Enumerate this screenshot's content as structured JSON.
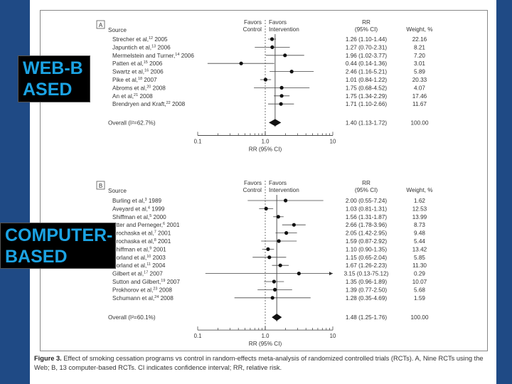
{
  "overlays": {
    "web": "WEB-B\nASED",
    "computer": "COMPUTER-\nBASED"
  },
  "caption": {
    "label": "Figure 3.",
    "text": " Effect of smoking cessation programs vs control in random-effects meta-analysis of randomized controlled trials (RCTs). A, Nine RCTs using the Web; B, 13 computer-based RCTs. CI indicates confidence interval; RR, relative risk."
  },
  "chart_data": [
    {
      "type": "forest",
      "panel": "A",
      "headers": {
        "source": "Source",
        "favors_control": [
          "Favors",
          "Control"
        ],
        "favors_intervention": [
          "Favors",
          "Intervention"
        ],
        "rr": [
          "RR",
          "(95% CI)"
        ],
        "weight": "Weight, %"
      },
      "xlabel": "RR (95% CI)",
      "xscale": "log",
      "xlim": [
        0.1,
        10
      ],
      "xticks": [
        "0.1",
        "1.0",
        "10"
      ],
      "studies": [
        {
          "source": "Strecher et al,",
          "ref": "12",
          "year": "2005",
          "rr": 1.26,
          "lo": 1.1,
          "hi": 1.44,
          "text": "1.26 (1.10-1.44)",
          "weight": "22.16"
        },
        {
          "source": "Japuntich et al,",
          "ref": "13",
          "year": "2006",
          "rr": 1.27,
          "lo": 0.7,
          "hi": 2.31,
          "text": "1.27 (0.70-2.31)",
          "weight": "8.21"
        },
        {
          "source": "Mermelstein and Turner,",
          "ref": "14",
          "year": "2006",
          "rr": 1.96,
          "lo": 1.02,
          "hi": 3.77,
          "text": "1.96 (1.02-3.77)",
          "weight": "7.20"
        },
        {
          "source": "Patten et al,",
          "ref": "15",
          "year": "2006",
          "rr": 0.44,
          "lo": 0.14,
          "hi": 1.36,
          "text": "0.44 (0.14-1.36)",
          "weight": "3.01"
        },
        {
          "source": "Swartz et al,",
          "ref": "16",
          "year": "2006",
          "rr": 2.46,
          "lo": 1.16,
          "hi": 5.21,
          "text": "2.46 (1.16-5.21)",
          "weight": "5.89"
        },
        {
          "source": "Pike et al,",
          "ref": "18",
          "year": "2007",
          "rr": 1.01,
          "lo": 0.84,
          "hi": 1.22,
          "text": "1.01 (0.84-1.22)",
          "weight": "20.33"
        },
        {
          "source": "Abroms et al,",
          "ref": "20",
          "year": "2008",
          "rr": 1.75,
          "lo": 0.68,
          "hi": 4.52,
          "text": "1.75 (0.68-4.52)",
          "weight": "4.07"
        },
        {
          "source": "An et al,",
          "ref": "21",
          "year": "2008",
          "rr": 1.75,
          "lo": 1.34,
          "hi": 2.29,
          "text": "1.75 (1.34-2.29)",
          "weight": "17.46"
        },
        {
          "source": "Brendryen and Kraft,",
          "ref": "22",
          "year": "2008",
          "rr": 1.71,
          "lo": 1.1,
          "hi": 2.66,
          "text": "1.71 (1.10-2.66)",
          "weight": "11.67"
        }
      ],
      "overall": {
        "label": "Overall",
        "i2": "(I²=62.7%)",
        "rr": 1.4,
        "lo": 1.13,
        "hi": 1.72,
        "text": "1.40 (1.13-1.72)",
        "weight": "100.00"
      }
    },
    {
      "type": "forest",
      "panel": "B",
      "headers": {
        "source": "Source",
        "favors_control": [
          "Favors",
          "Control"
        ],
        "favors_intervention": [
          "Favors",
          "Intervention"
        ],
        "rr": [
          "RR",
          "(95% CI)"
        ],
        "weight": "Weight, %"
      },
      "xlabel": "RR (95% CI)",
      "xscale": "log",
      "xlim": [
        0.1,
        10
      ],
      "xticks": [
        "0.1",
        "1.0",
        "10"
      ],
      "studies": [
        {
          "source": "Burling et al,",
          "ref": "3",
          "year": "1989",
          "rr": 2.0,
          "lo": 0.55,
          "hi": 7.24,
          "text": "2.00 (0.55-7.24)",
          "weight": "1.62"
        },
        {
          "source": "Aveyard et al,",
          "ref": "4",
          "year": "1999",
          "rr": 1.03,
          "lo": 0.81,
          "hi": 1.31,
          "text": "1.03 (0.81-1.31)",
          "weight": "12.53"
        },
        {
          "source": "Shiffman et al,",
          "ref": "5",
          "year": "2000",
          "rr": 1.56,
          "lo": 1.31,
          "hi": 1.87,
          "text": "1.56 (1.31-1.87)",
          "weight": "13.99"
        },
        {
          "source": "Etter and Perneger,",
          "ref": "6",
          "year": "2001",
          "rr": 2.66,
          "lo": 1.78,
          "hi": 3.96,
          "text": "2.66 (1.78-3.96)",
          "weight": "8.73"
        },
        {
          "source": "Prochaska et al,",
          "ref": "7",
          "year": "2001",
          "rr": 2.05,
          "lo": 1.42,
          "hi": 2.95,
          "text": "2.05 (1.42-2.95)",
          "weight": "9.48"
        },
        {
          "source": "Prochaska et al,",
          "ref": "8",
          "year": "2001",
          "rr": 1.59,
          "lo": 0.87,
          "hi": 2.92,
          "text": "1.59 (0.87-2.92)",
          "weight": "5.44"
        },
        {
          "source": "Shiffman et al,",
          "ref": "9",
          "year": "2001",
          "rr": 1.1,
          "lo": 0.9,
          "hi": 1.35,
          "text": "1.10 (0.90-1.35)",
          "weight": "13.42"
        },
        {
          "source": "Borland et al,",
          "ref": "10",
          "year": "2003",
          "rr": 1.15,
          "lo": 0.65,
          "hi": 2.04,
          "text": "1.15 (0.65-2.04)",
          "weight": "5.85"
        },
        {
          "source": "Borland et al,",
          "ref": "11",
          "year": "2004",
          "rr": 1.67,
          "lo": 1.26,
          "hi": 2.23,
          "text": "1.67 (1.26-2.23)",
          "weight": "11.30"
        },
        {
          "source": "Gilbert et al,",
          "ref": "17",
          "year": "2007",
          "rr": 3.15,
          "lo": 0.13,
          "hi": 75.12,
          "text": "3.15 (0.13-75.12)",
          "weight": "0.29"
        },
        {
          "source": "Sutton and Gilbert,",
          "ref": "19",
          "year": "2007",
          "rr": 1.35,
          "lo": 0.96,
          "hi": 1.89,
          "text": "1.35 (0.96-1.89)",
          "weight": "10.07"
        },
        {
          "source": "Prokhorov et al,",
          "ref": "23",
          "year": "2008",
          "rr": 1.39,
          "lo": 0.77,
          "hi": 2.5,
          "text": "1.39 (0.77-2.50)",
          "weight": "5.68"
        },
        {
          "source": "Schumann et al,",
          "ref": "24",
          "year": "2008",
          "rr": 1.28,
          "lo": 0.35,
          "hi": 4.69,
          "text": "1.28 (0.35-4.69)",
          "weight": "1.59"
        }
      ],
      "overall": {
        "label": "Overall",
        "i2": "(I²=60.1%)",
        "rr": 1.48,
        "lo": 1.25,
        "hi": 1.76,
        "text": "1.48 (1.25-1.76)",
        "weight": "100.00"
      }
    }
  ]
}
